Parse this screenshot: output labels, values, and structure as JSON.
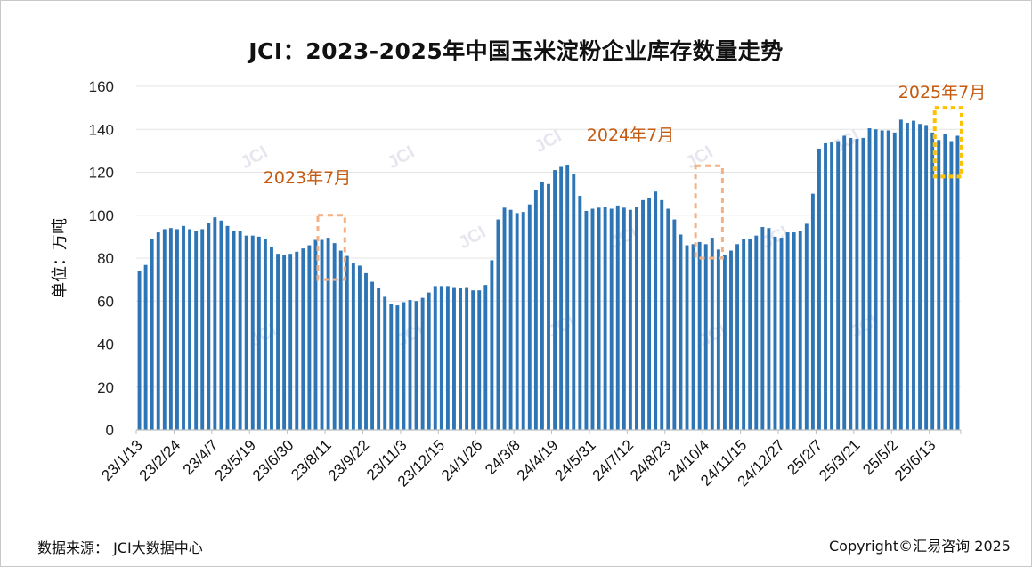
{
  "title": "JCI：2023-2025年中国玉米淀粉企业库存数量走势",
  "source_note": "数据来源：  JCI大数据中心",
  "copyright": "Copyright©汇易咨询 2025",
  "watermark_text": "JCI",
  "colors": {
    "bar": "#2e75b6",
    "annotation_text": "#c55a11",
    "box_2023": "#f4b183",
    "box_2024": "#f4b183",
    "box_2025": "#ffc000"
  },
  "chart_data": {
    "type": "bar",
    "title": "JCI：2023-2025年中国玉米淀粉企业库存数量走势",
    "ylabel": "单位：万吨",
    "ylim": [
      0,
      160
    ],
    "yticks": [
      0,
      20,
      40,
      60,
      80,
      100,
      120,
      140,
      160
    ],
    "grid": true,
    "x_tick_labels": [
      "23/1/13",
      "23/2/24",
      "23/4/7",
      "23/5/19",
      "23/6/30",
      "23/8/11",
      "23/9/22",
      "23/11/3",
      "23/12/15",
      "24/1/26",
      "24/3/8",
      "24/4/19",
      "24/5/31",
      "24/7/12",
      "24/8/23",
      "24/10/4",
      "24/11/15",
      "24/12/27",
      "25/2/7",
      "25/3/21",
      "25/5/2",
      "25/6/13"
    ],
    "values": [
      74.2,
      76.8,
      89,
      92,
      93.5,
      94,
      93.5,
      95,
      93.5,
      92.5,
      93.5,
      96.5,
      99,
      97.5,
      95,
      92.5,
      92.5,
      90.5,
      90.5,
      90,
      89,
      85,
      82,
      81.5,
      82,
      83,
      84.5,
      86,
      88.5,
      88.5,
      89.5,
      87,
      83.5,
      81,
      77.5,
      76.5,
      73,
      69,
      66,
      62,
      58.5,
      58,
      59.5,
      60.5,
      60,
      61.5,
      64,
      67,
      67,
      67,
      66.5,
      66,
      66.5,
      65,
      65,
      67.5,
      79,
      98,
      103.5,
      102.5,
      101,
      101.5,
      105,
      111.5,
      115.5,
      114.5,
      121,
      122.5,
      123.5,
      119,
      109,
      102,
      103,
      103.5,
      104,
      103,
      104.5,
      103.5,
      102.5,
      104,
      107,
      108,
      111,
      107,
      103,
      98,
      91,
      86,
      86.5,
      87.5,
      86.5,
      89.5,
      84,
      81.5,
      83.5,
      86.5,
      89,
      89,
      90.5,
      94.5,
      94,
      90,
      89.5,
      92,
      92,
      92.5,
      96,
      110,
      131,
      133.5,
      134,
      134.5,
      137,
      136,
      135.5,
      136,
      140.5,
      140,
      139.5,
      139.5,
      138.5,
      144.5,
      143,
      144,
      142.5,
      142,
      138.5,
      135,
      138,
      134.5,
      137
    ],
    "annotations": [
      {
        "text": "2023年7月",
        "box_range": [
          70,
          100
        ]
      },
      {
        "text": "2024年7月",
        "box_range": [
          80,
          123
        ]
      },
      {
        "text": "2025年7月",
        "box_range": [
          118,
          150
        ]
      }
    ]
  }
}
